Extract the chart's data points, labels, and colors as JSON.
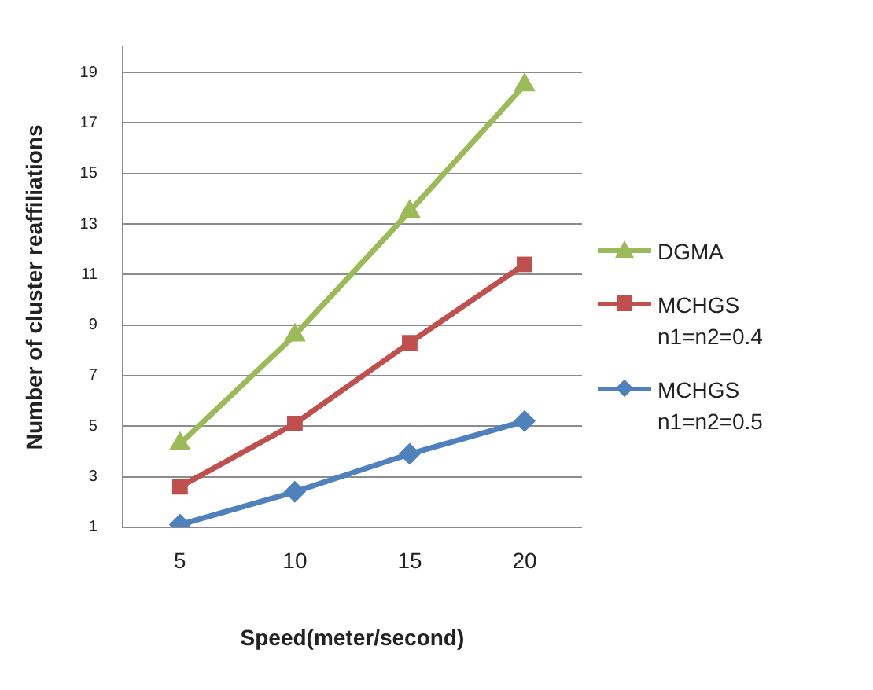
{
  "chart_data": {
    "type": "line",
    "xlabel": "Speed(meter/second)",
    "ylabel": "Number of cluster reaffiliations",
    "categories": [
      "5",
      "10",
      "15",
      "20"
    ],
    "series": [
      {
        "name": "DGMA",
        "color": "#9bbb59",
        "marker": "triangle",
        "values": [
          4.3,
          8.6,
          13.5,
          18.5
        ]
      },
      {
        "name": "MCHGS\nn1=n2=0.4",
        "color": "#c0504d",
        "marker": "square",
        "values": [
          2.6,
          5.1,
          8.3,
          11.4
        ]
      },
      {
        "name": "MCHGS\nn1=n2=0.5",
        "color": "#4f81bd",
        "marker": "diamond",
        "values": [
          1.1,
          2.4,
          3.9,
          5.2
        ]
      }
    ],
    "ylim": [
      1,
      20
    ],
    "yticks": [
      1,
      3,
      5,
      7,
      9,
      11,
      13,
      15,
      17,
      19
    ],
    "grid": "y",
    "legend": "right",
    "line_style": "solid"
  }
}
